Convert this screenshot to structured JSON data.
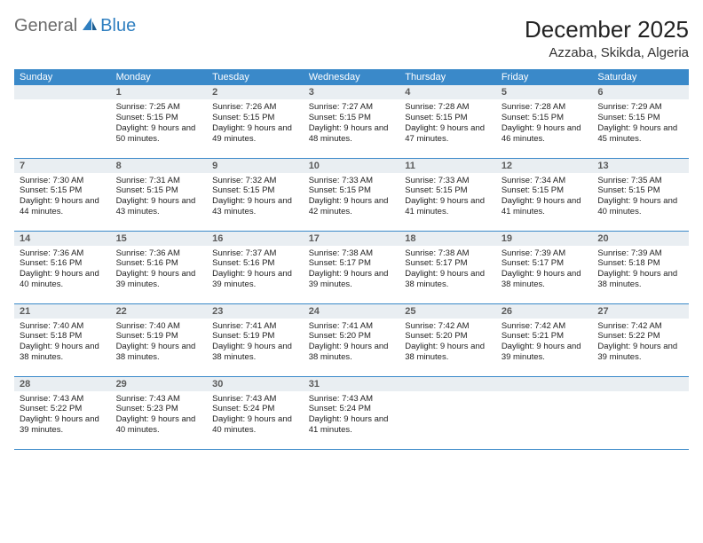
{
  "logo": {
    "general": "General",
    "blue": "Blue"
  },
  "title": "December 2025",
  "location": "Azzaba, Skikda, Algeria",
  "colors": {
    "header_bg": "#3a89c9",
    "header_text": "#ffffff",
    "daynum_bg": "#e9eef2",
    "border": "#3a89c9",
    "logo_gray": "#6b6b6b",
    "logo_blue": "#2f7fc0"
  },
  "day_headers": [
    "Sunday",
    "Monday",
    "Tuesday",
    "Wednesday",
    "Thursday",
    "Friday",
    "Saturday"
  ],
  "weeks": [
    [
      {
        "n": "",
        "sr": "",
        "ss": "",
        "dl": ""
      },
      {
        "n": "1",
        "sr": "Sunrise: 7:25 AM",
        "ss": "Sunset: 5:15 PM",
        "dl": "Daylight: 9 hours and 50 minutes."
      },
      {
        "n": "2",
        "sr": "Sunrise: 7:26 AM",
        "ss": "Sunset: 5:15 PM",
        "dl": "Daylight: 9 hours and 49 minutes."
      },
      {
        "n": "3",
        "sr": "Sunrise: 7:27 AM",
        "ss": "Sunset: 5:15 PM",
        "dl": "Daylight: 9 hours and 48 minutes."
      },
      {
        "n": "4",
        "sr": "Sunrise: 7:28 AM",
        "ss": "Sunset: 5:15 PM",
        "dl": "Daylight: 9 hours and 47 minutes."
      },
      {
        "n": "5",
        "sr": "Sunrise: 7:28 AM",
        "ss": "Sunset: 5:15 PM",
        "dl": "Daylight: 9 hours and 46 minutes."
      },
      {
        "n": "6",
        "sr": "Sunrise: 7:29 AM",
        "ss": "Sunset: 5:15 PM",
        "dl": "Daylight: 9 hours and 45 minutes."
      }
    ],
    [
      {
        "n": "7",
        "sr": "Sunrise: 7:30 AM",
        "ss": "Sunset: 5:15 PM",
        "dl": "Daylight: 9 hours and 44 minutes."
      },
      {
        "n": "8",
        "sr": "Sunrise: 7:31 AM",
        "ss": "Sunset: 5:15 PM",
        "dl": "Daylight: 9 hours and 43 minutes."
      },
      {
        "n": "9",
        "sr": "Sunrise: 7:32 AM",
        "ss": "Sunset: 5:15 PM",
        "dl": "Daylight: 9 hours and 43 minutes."
      },
      {
        "n": "10",
        "sr": "Sunrise: 7:33 AM",
        "ss": "Sunset: 5:15 PM",
        "dl": "Daylight: 9 hours and 42 minutes."
      },
      {
        "n": "11",
        "sr": "Sunrise: 7:33 AM",
        "ss": "Sunset: 5:15 PM",
        "dl": "Daylight: 9 hours and 41 minutes."
      },
      {
        "n": "12",
        "sr": "Sunrise: 7:34 AM",
        "ss": "Sunset: 5:15 PM",
        "dl": "Daylight: 9 hours and 41 minutes."
      },
      {
        "n": "13",
        "sr": "Sunrise: 7:35 AM",
        "ss": "Sunset: 5:15 PM",
        "dl": "Daylight: 9 hours and 40 minutes."
      }
    ],
    [
      {
        "n": "14",
        "sr": "Sunrise: 7:36 AM",
        "ss": "Sunset: 5:16 PM",
        "dl": "Daylight: 9 hours and 40 minutes."
      },
      {
        "n": "15",
        "sr": "Sunrise: 7:36 AM",
        "ss": "Sunset: 5:16 PM",
        "dl": "Daylight: 9 hours and 39 minutes."
      },
      {
        "n": "16",
        "sr": "Sunrise: 7:37 AM",
        "ss": "Sunset: 5:16 PM",
        "dl": "Daylight: 9 hours and 39 minutes."
      },
      {
        "n": "17",
        "sr": "Sunrise: 7:38 AM",
        "ss": "Sunset: 5:17 PM",
        "dl": "Daylight: 9 hours and 39 minutes."
      },
      {
        "n": "18",
        "sr": "Sunrise: 7:38 AM",
        "ss": "Sunset: 5:17 PM",
        "dl": "Daylight: 9 hours and 38 minutes."
      },
      {
        "n": "19",
        "sr": "Sunrise: 7:39 AM",
        "ss": "Sunset: 5:17 PM",
        "dl": "Daylight: 9 hours and 38 minutes."
      },
      {
        "n": "20",
        "sr": "Sunrise: 7:39 AM",
        "ss": "Sunset: 5:18 PM",
        "dl": "Daylight: 9 hours and 38 minutes."
      }
    ],
    [
      {
        "n": "21",
        "sr": "Sunrise: 7:40 AM",
        "ss": "Sunset: 5:18 PM",
        "dl": "Daylight: 9 hours and 38 minutes."
      },
      {
        "n": "22",
        "sr": "Sunrise: 7:40 AM",
        "ss": "Sunset: 5:19 PM",
        "dl": "Daylight: 9 hours and 38 minutes."
      },
      {
        "n": "23",
        "sr": "Sunrise: 7:41 AM",
        "ss": "Sunset: 5:19 PM",
        "dl": "Daylight: 9 hours and 38 minutes."
      },
      {
        "n": "24",
        "sr": "Sunrise: 7:41 AM",
        "ss": "Sunset: 5:20 PM",
        "dl": "Daylight: 9 hours and 38 minutes."
      },
      {
        "n": "25",
        "sr": "Sunrise: 7:42 AM",
        "ss": "Sunset: 5:20 PM",
        "dl": "Daylight: 9 hours and 38 minutes."
      },
      {
        "n": "26",
        "sr": "Sunrise: 7:42 AM",
        "ss": "Sunset: 5:21 PM",
        "dl": "Daylight: 9 hours and 39 minutes."
      },
      {
        "n": "27",
        "sr": "Sunrise: 7:42 AM",
        "ss": "Sunset: 5:22 PM",
        "dl": "Daylight: 9 hours and 39 minutes."
      }
    ],
    [
      {
        "n": "28",
        "sr": "Sunrise: 7:43 AM",
        "ss": "Sunset: 5:22 PM",
        "dl": "Daylight: 9 hours and 39 minutes."
      },
      {
        "n": "29",
        "sr": "Sunrise: 7:43 AM",
        "ss": "Sunset: 5:23 PM",
        "dl": "Daylight: 9 hours and 40 minutes."
      },
      {
        "n": "30",
        "sr": "Sunrise: 7:43 AM",
        "ss": "Sunset: 5:24 PM",
        "dl": "Daylight: 9 hours and 40 minutes."
      },
      {
        "n": "31",
        "sr": "Sunrise: 7:43 AM",
        "ss": "Sunset: 5:24 PM",
        "dl": "Daylight: 9 hours and 41 minutes."
      },
      {
        "n": "",
        "sr": "",
        "ss": "",
        "dl": ""
      },
      {
        "n": "",
        "sr": "",
        "ss": "",
        "dl": ""
      },
      {
        "n": "",
        "sr": "",
        "ss": "",
        "dl": ""
      }
    ]
  ]
}
